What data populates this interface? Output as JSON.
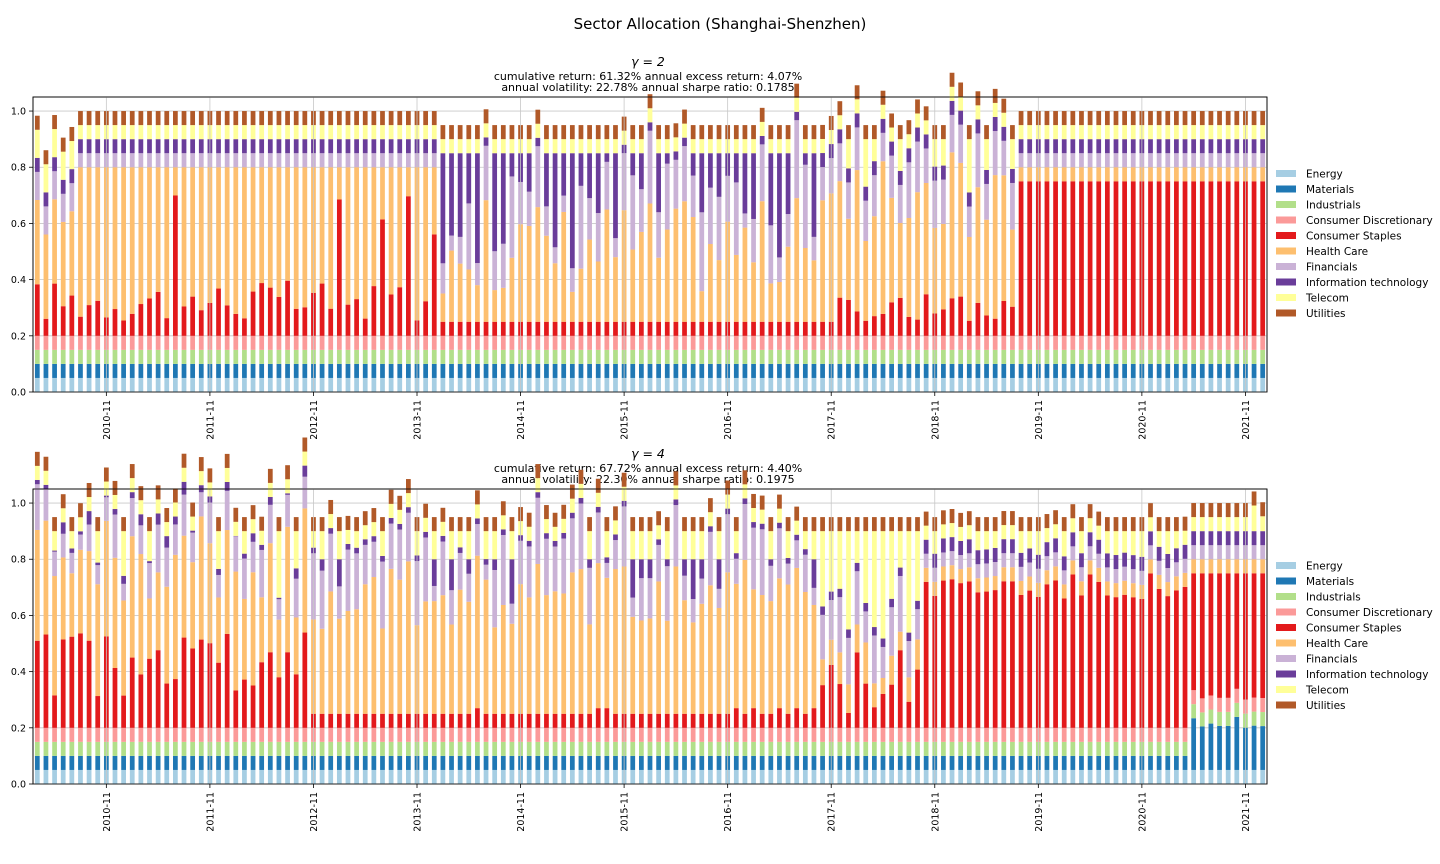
{
  "figure": {
    "suptitle": "Sector Allocation (Shanghai-Shenzhen)"
  },
  "sectors": [
    {
      "name": "Energy",
      "color": "#a6cee3"
    },
    {
      "name": "Materials",
      "color": "#1f78b4"
    },
    {
      "name": "Industrials",
      "color": "#b2df8a"
    },
    {
      "name": "Consumer Discretionary",
      "color": "#fb9a99"
    },
    {
      "name": "Consumer Staples",
      "color": "#e31a1c"
    },
    {
      "name": "Health Care",
      "color": "#fdbf6f"
    },
    {
      "name": "Financials",
      "color": "#cab2d6"
    },
    {
      "name": "Information technology",
      "color": "#6a3d9a"
    },
    {
      "name": "Telecom",
      "color": "#ffff99"
    },
    {
      "name": "Utilities",
      "color": "#b15928"
    }
  ],
  "chart_data": [
    {
      "type": "bar",
      "stacked": true,
      "gamma_label": "γ = 2",
      "stats_line1": "cumulative return: 61.32%  annual excess return: 4.07%",
      "stats_line2": "annual volatility: 22.78%   annual sharpe ratio: 0.1785",
      "x_ticks": [
        "2010-11",
        "2011-11",
        "2012-11",
        "2013-11",
        "2014-11",
        "2015-11",
        "2016-11",
        "2017-11",
        "2018-11",
        "2019-11",
        "2020-11",
        "2021-11"
      ],
      "y_ticks": [
        "0.0",
        "0.2",
        "0.4",
        "0.6",
        "0.8",
        "1.0"
      ],
      "ylim": [
        0,
        1.05
      ],
      "grid": true,
      "legend_position": "right",
      "n_periods": 143,
      "series_summary": {
        "Energy": 0.05,
        "Materials": 0.05,
        "Industrials": 0.05,
        "Consumer Discretionary": 0.05,
        "Consumer Staples_2010_2017": [
          0.05,
          0.53
        ],
        "Consumer Staples_2018_2021": 0.55,
        "Health Care_2010_2013": [
          0.35,
          0.55
        ],
        "Health Care_2018_2021": [
          0.05,
          0.1
        ],
        "Financials": [
          0.0,
          0.45
        ],
        "Information technology": [
          0.0,
          0.47
        ],
        "Telecom": [
          0.05,
          0.4
        ],
        "Utilities": 0.05
      }
    },
    {
      "type": "bar",
      "stacked": true,
      "gamma_label": "γ = 4",
      "stats_line1": "cumulative return: 67.72%  annual excess return: 4.40%",
      "stats_line2": "annual volatility: 22.30%   annual sharpe ratio: 0.1975",
      "x_ticks": [
        "2010-11",
        "2011-11",
        "2012-11",
        "2013-11",
        "2014-11",
        "2015-11",
        "2016-11",
        "2017-11",
        "2018-11",
        "2019-11",
        "2020-11",
        "2021-11"
      ],
      "y_ticks": [
        "0.0",
        "0.2",
        "0.4",
        "0.6",
        "0.8",
        "1.0"
      ],
      "ylim": [
        0,
        1.05
      ],
      "grid": true,
      "legend_position": "right",
      "n_periods": 143,
      "series_summary": {
        "Energy": 0.05,
        "Materials": [
          0.05,
          0.24
        ],
        "Industrials": 0.05,
        "Consumer Discretionary": 0.05,
        "Consumer Staples": [
          0.05,
          0.55
        ],
        "Health Care": [
          0.05,
          0.55
        ],
        "Financials": [
          0.0,
          0.45
        ],
        "Information technology": [
          0.0,
          0.27
        ],
        "Telecom": [
          0.05,
          0.3
        ],
        "Utilities": 0.05
      }
    }
  ]
}
